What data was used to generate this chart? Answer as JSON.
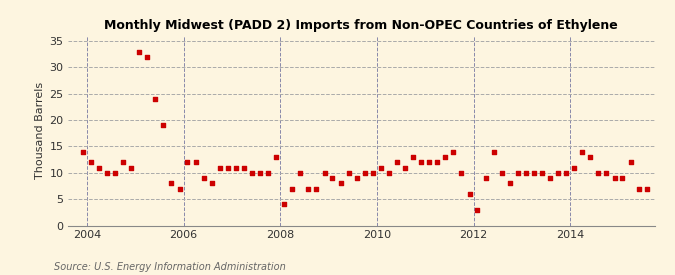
{
  "title": "Monthly Midwest (PADD 2) Imports from Non-OPEC Countries of Ethylene",
  "ylabel": "Thousand Barrels",
  "source": "Source: U.S. Energy Information Administration",
  "bg_color": "#fdf5e0",
  "dot_color": "#cc0000",
  "hgrid_color": "#aaaaaa",
  "vgrid_color": "#8888aa",
  "ylim": [
    0,
    36
  ],
  "yticks": [
    0,
    5,
    10,
    15,
    20,
    25,
    30,
    35
  ],
  "xmin": 2003.6,
  "xmax": 2015.75,
  "xticks": [
    2004,
    2006,
    2008,
    2010,
    2012,
    2014
  ],
  "vline_positions": [
    2004,
    2006,
    2008,
    2010,
    2012,
    2014
  ],
  "data_x": [
    2003.92,
    2004.08,
    2004.25,
    2004.42,
    2004.58,
    2004.75,
    2004.92,
    2005.08,
    2005.25,
    2005.42,
    2005.58,
    2005.75,
    2005.92,
    2006.08,
    2006.25,
    2006.42,
    2006.58,
    2006.75,
    2006.92,
    2007.08,
    2007.25,
    2007.42,
    2007.58,
    2007.75,
    2007.92,
    2008.08,
    2008.25,
    2008.42,
    2008.58,
    2008.75,
    2008.92,
    2009.08,
    2009.25,
    2009.42,
    2009.58,
    2009.75,
    2009.92,
    2010.08,
    2010.25,
    2010.42,
    2010.58,
    2010.75,
    2010.92,
    2011.08,
    2011.25,
    2011.42,
    2011.58,
    2011.75,
    2011.92,
    2012.08,
    2012.25,
    2012.42,
    2012.58,
    2012.75,
    2012.92,
    2013.08,
    2013.25,
    2013.42,
    2013.58,
    2013.75,
    2013.92,
    2014.08,
    2014.25,
    2014.42,
    2014.58,
    2014.75,
    2014.92,
    2015.08,
    2015.25,
    2015.42,
    2015.58
  ],
  "data_y": [
    14,
    12,
    11,
    10,
    10,
    12,
    11,
    33,
    32,
    24,
    19,
    8,
    7,
    12,
    12,
    9,
    8,
    11,
    11,
    11,
    11,
    10,
    10,
    10,
    13,
    4,
    7,
    10,
    7,
    7,
    10,
    9,
    8,
    10,
    9,
    10,
    10,
    11,
    10,
    12,
    11,
    13,
    12,
    12,
    12,
    13,
    14,
    10,
    6,
    3,
    9,
    14,
    10,
    8,
    10,
    10,
    10,
    10,
    9,
    10,
    10,
    11,
    14,
    13,
    10,
    10,
    9,
    9,
    12,
    7,
    7
  ]
}
